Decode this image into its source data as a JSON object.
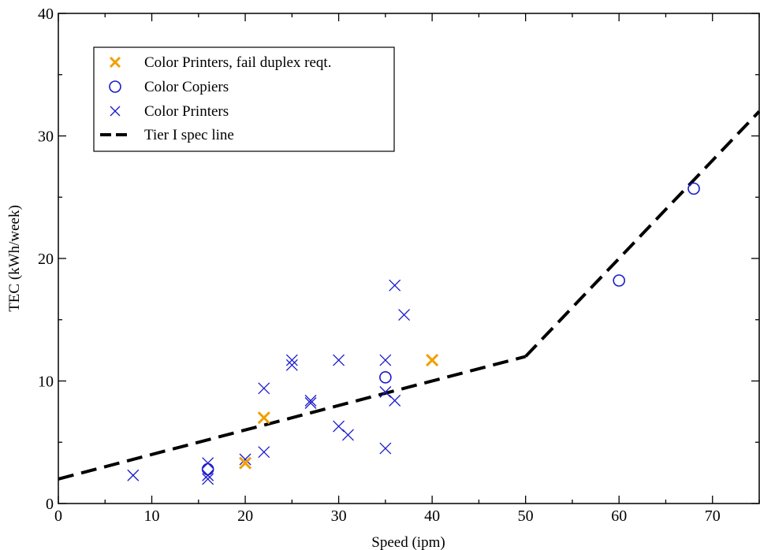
{
  "chart_data": {
    "type": "scatter",
    "title": "",
    "xlabel": "Speed (ipm)",
    "ylabel": "TEC (kWh/week)",
    "xlim": [
      0,
      75
    ],
    "ylim": [
      0,
      40
    ],
    "xticks": [
      0,
      10,
      20,
      30,
      40,
      50,
      60,
      70
    ],
    "yticks": [
      0,
      10,
      20,
      30,
      40
    ],
    "legend_position": "top-left",
    "grid": false,
    "series": [
      {
        "name": "Color Printers, fail duplex reqt.",
        "marker": "x",
        "color": "#f0a000",
        "points": [
          [
            20,
            3.3
          ],
          [
            22,
            7.0
          ],
          [
            40,
            11.7
          ]
        ]
      },
      {
        "name": "Color Copiers",
        "marker": "circle",
        "color": "#1a1acc",
        "points": [
          [
            16,
            2.8
          ],
          [
            35,
            10.3
          ],
          [
            60,
            18.2
          ],
          [
            68,
            25.7
          ]
        ]
      },
      {
        "name": "Color Printers",
        "marker": "x",
        "color": "#1a1acc",
        "points": [
          [
            8,
            2.3
          ],
          [
            16,
            3.3
          ],
          [
            16,
            2.3
          ],
          [
            16,
            2.0
          ],
          [
            20,
            3.6
          ],
          [
            22,
            9.4
          ],
          [
            22,
            4.2
          ],
          [
            25,
            11.7
          ],
          [
            25,
            11.3
          ],
          [
            27,
            8.4
          ],
          [
            27,
            8.2
          ],
          [
            30,
            11.7
          ],
          [
            30,
            6.3
          ],
          [
            31,
            5.6
          ],
          [
            35,
            11.7
          ],
          [
            35,
            9.1
          ],
          [
            35,
            4.5
          ],
          [
            36,
            17.8
          ],
          [
            36,
            8.4
          ],
          [
            37,
            15.4
          ]
        ]
      },
      {
        "name": "Tier I spec line",
        "marker": "dashed-line",
        "color": "#000000",
        "segments": [
          [
            [
              0,
              2.0
            ],
            [
              50,
              12.0
            ]
          ],
          [
            [
              50,
              12.0
            ],
            [
              75,
              32.0
            ]
          ]
        ]
      }
    ]
  }
}
